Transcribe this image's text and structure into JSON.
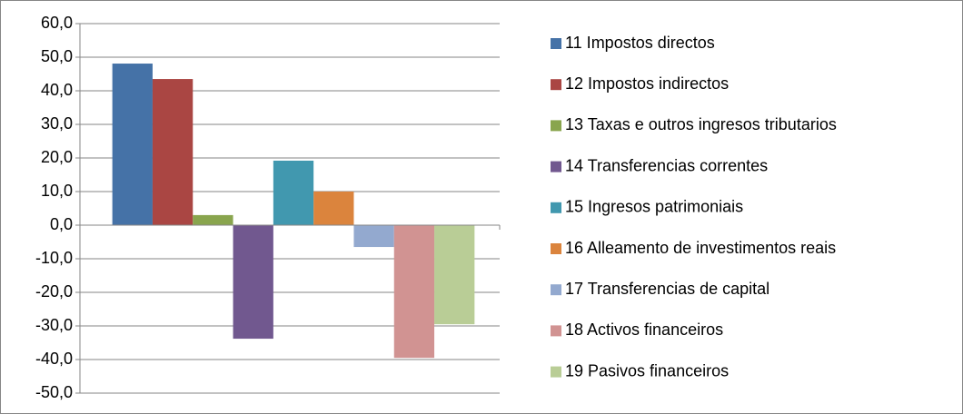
{
  "chart_data": {
    "type": "bar",
    "categories": [
      null
    ],
    "series": [
      {
        "name": "11 Impostos directos",
        "color": "#4572a7",
        "values": [
          48.1
        ]
      },
      {
        "name": "12 Impostos indirectos",
        "color": "#aa4643",
        "values": [
          43.5
        ]
      },
      {
        "name": "13 Taxas e outros ingresos tributarios",
        "color": "#89a54e",
        "values": [
          3.0
        ]
      },
      {
        "name": "14 Transferencias correntes",
        "color": "#71588f",
        "values": [
          -33.8
        ]
      },
      {
        "name": "15 Ingresos patrimoniais",
        "color": "#4198af",
        "values": [
          19.2
        ]
      },
      {
        "name": "16 Alleamento de investimentos reais",
        "color": "#db843d",
        "values": [
          10.0
        ]
      },
      {
        "name": "17 Transferencias de capital",
        "color": "#93a9cf",
        "values": [
          -6.5
        ]
      },
      {
        "name": "18 Activos financeiros",
        "color": "#d19392",
        "values": [
          -39.5
        ]
      },
      {
        "name": "19 Pasivos financeiros",
        "color": "#b9cd96",
        "values": [
          -29.5
        ]
      }
    ],
    "ylim": [
      -50,
      60
    ],
    "yticks": [
      {
        "value": -50,
        "label": "-50,0"
      },
      {
        "value": -40,
        "label": "-40,0"
      },
      {
        "value": -30,
        "label": "-30,0"
      },
      {
        "value": -20,
        "label": "-20,0"
      },
      {
        "value": -10,
        "label": "-10,0"
      },
      {
        "value": 0,
        "label": "0,0"
      },
      {
        "value": 10,
        "label": "10,0"
      },
      {
        "value": 20,
        "label": "20,0"
      },
      {
        "value": 30,
        "label": "30,0"
      },
      {
        "value": 40,
        "label": "40,0"
      },
      {
        "value": 50,
        "label": "50,0"
      },
      {
        "value": 60,
        "label": "60,0"
      }
    ],
    "grid": true,
    "legend": "right"
  }
}
